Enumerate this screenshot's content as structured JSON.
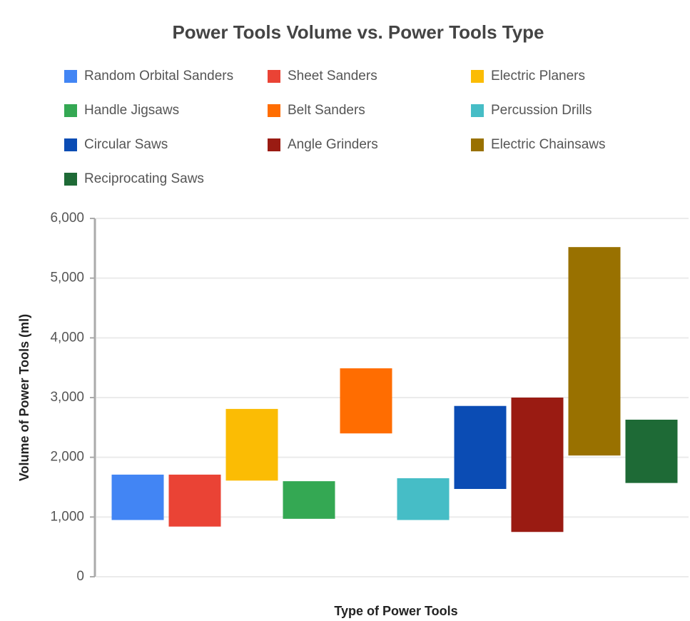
{
  "chart_data": {
    "type": "bar",
    "title": "Power Tools Volume vs. Power Tools Type",
    "x_label": "Type of Power Tools",
    "y_label": "Volume of Power Tools (ml)",
    "ylim": [
      0,
      6000
    ],
    "yticks": [
      0,
      {
        "value": 1000,
        "label": "1,000"
      },
      {
        "value": 2000,
        "label": "2,000"
      },
      {
        "value": 3000,
        "label": "3,000"
      },
      {
        "value": 4000,
        "label": "4,000"
      },
      {
        "value": 5000,
        "label": "5,000"
      },
      {
        "value": 6000,
        "label": "6,000"
      }
    ],
    "grid": true,
    "series": [
      {
        "name": "Random Orbital Sanders",
        "color": "#4285f4",
        "values": [
          950,
          1710
        ]
      },
      {
        "name": "Sheet Sanders",
        "color": "#ea4335",
        "values": [
          840,
          1710
        ]
      },
      {
        "name": "Electric Planers",
        "color": "#fbbc04",
        "values": [
          1610,
          2810
        ]
      },
      {
        "name": "Handle Jigsaws",
        "color": "#34a853",
        "values": [
          970,
          1600
        ]
      },
      {
        "name": "Belt Sanders",
        "color": "#ff6d01",
        "values": [
          2400,
          3490
        ]
      },
      {
        "name": "Percussion Drills",
        "color": "#46bdc6",
        "values": [
          950,
          1650
        ]
      },
      {
        "name": "Circular Saws",
        "color": "#0b4cb4",
        "values": [
          1470,
          2860
        ]
      },
      {
        "name": "Angle Grinders",
        "color": "#9a1b12",
        "values": [
          750,
          3000
        ]
      },
      {
        "name": "Electric Chainsaws",
        "color": "#997100",
        "values": [
          2030,
          5520
        ]
      },
      {
        "name": "Reciprocating Saws",
        "color": "#1e6a36",
        "values": [
          1570,
          2630
        ]
      }
    ]
  }
}
